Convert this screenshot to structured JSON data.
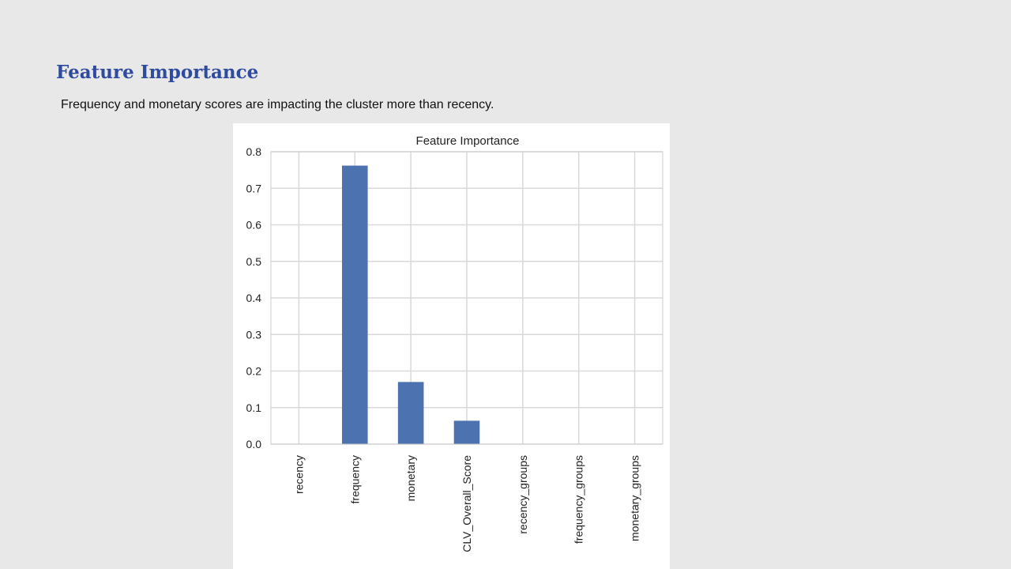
{
  "slide": {
    "title": "Feature Importance",
    "subtitle": "Frequency and monetary scores are impacting the cluster more than recency.",
    "title_color": "#2f4ba0"
  },
  "chart_data": {
    "type": "bar",
    "title": "Feature Importance",
    "xlabel": "",
    "ylabel": "",
    "categories": [
      "recency",
      "frequency",
      "monetary",
      "CLV_Overall_Score",
      "recency_groups",
      "frequency_groups",
      "monetary_groups"
    ],
    "values": [
      0.0,
      0.762,
      0.17,
      0.064,
      0.0,
      0.0,
      0.0
    ],
    "ylim": [
      0,
      0.8
    ],
    "yticks": [
      "0.0",
      "0.1",
      "0.2",
      "0.3",
      "0.4",
      "0.5",
      "0.6",
      "0.7",
      "0.8"
    ],
    "grid": true,
    "legend": "none",
    "bar_color": "#4c72b0",
    "grid_color": "#d9d9d9"
  }
}
